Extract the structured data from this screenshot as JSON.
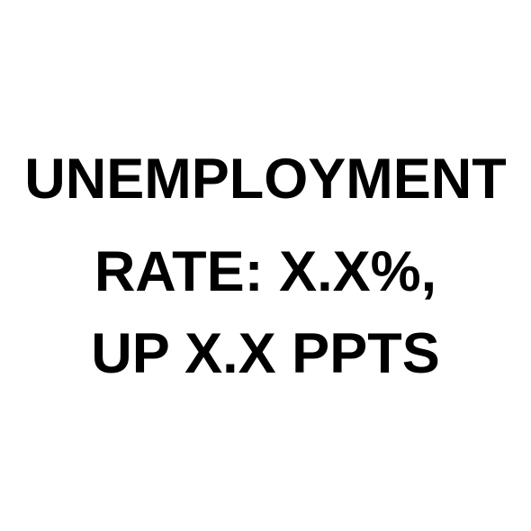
{
  "headline": {
    "line1": "UNEMPLOYMENT",
    "line2": "RATE: X.X%,",
    "line3": "UP X.X PPTS"
  },
  "colors": {
    "background": "#ffffff",
    "text": "#000000"
  }
}
